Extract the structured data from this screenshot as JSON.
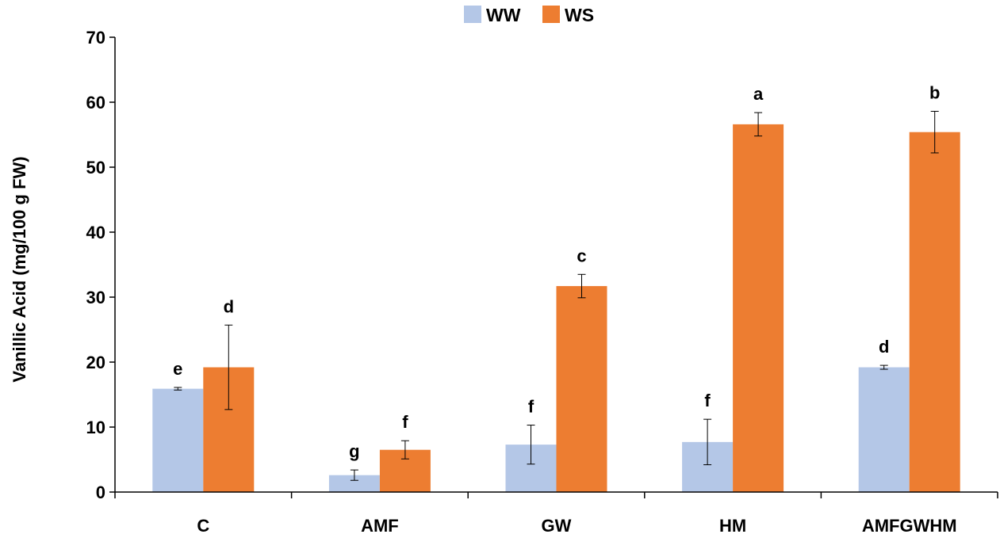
{
  "chart_data": {
    "type": "bar",
    "title": "",
    "xlabel": "",
    "ylabel": "Vanillic Acid (mg/100 g FW)",
    "ylim": [
      0,
      70
    ],
    "yticks": [
      "0",
      "10",
      "20",
      "30",
      "40",
      "50",
      "60",
      "70"
    ],
    "ytick_values": [
      0,
      10,
      20,
      30,
      40,
      50,
      60,
      70
    ],
    "grid": false,
    "legend_position": "top-center",
    "categories": [
      "C",
      "AMF",
      "GW",
      "HM",
      "AMFGWHM"
    ],
    "series": [
      {
        "name": "WW",
        "color": "#b4c7e7",
        "values": [
          15.9,
          2.6,
          7.3,
          7.7,
          19.2
        ],
        "errors": [
          0.2,
          0.8,
          3.0,
          3.5,
          0.3
        ],
        "letters": [
          "e",
          "g",
          "f",
          "f",
          "d"
        ]
      },
      {
        "name": "WS",
        "color": "#ed7d31",
        "values": [
          19.2,
          6.5,
          31.7,
          56.6,
          55.4
        ],
        "errors": [
          6.5,
          1.4,
          1.8,
          1.8,
          3.2
        ],
        "letters": [
          "d",
          "f",
          "c",
          "a",
          "b"
        ]
      }
    ]
  }
}
